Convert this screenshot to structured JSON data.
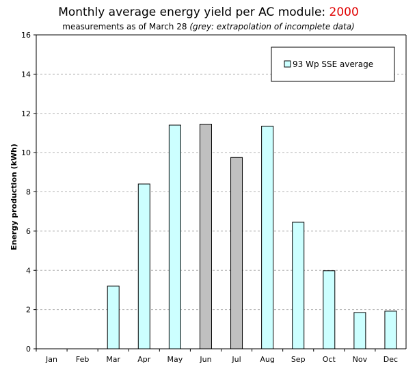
{
  "title": "Monthly average energy yield per AC module: ",
  "title_year": "2000",
  "subtitle": "measurements as of March 28 ",
  "subtitle_note": "(grey: extrapolation of incomplete data)",
  "colors": {
    "measured": "#ccffff",
    "extrapolated": "#c0c0c0",
    "year": "#e00000",
    "grid": "#b0b0b0"
  },
  "chart_data": {
    "type": "bar",
    "title": "Monthly average energy yield per AC module: 2000",
    "subtitle": "measurements as of March 28 (grey: extrapolation of incomplete data)",
    "xlabel": "",
    "ylabel": "Energy production (kWh)",
    "ylim": [
      0,
      16
    ],
    "yticks": [
      0,
      2,
      4,
      6,
      8,
      10,
      12,
      14,
      16
    ],
    "grid": "horizontal dashed",
    "legend_position": "top-right",
    "categories": [
      "Jan",
      "Feb",
      "Mar",
      "Apr",
      "May",
      "Jun",
      "Jul",
      "Aug",
      "Sep",
      "Oct",
      "Nov",
      "Dec"
    ],
    "series": [
      {
        "name": "93 Wp SSE average",
        "values": [
          0,
          0,
          3.2,
          8.4,
          11.4,
          11.45,
          9.75,
          11.35,
          6.45,
          3.98,
          1.85,
          1.92
        ],
        "extrapolated": [
          false,
          false,
          false,
          false,
          false,
          true,
          true,
          false,
          false,
          false,
          false,
          false
        ]
      }
    ]
  }
}
